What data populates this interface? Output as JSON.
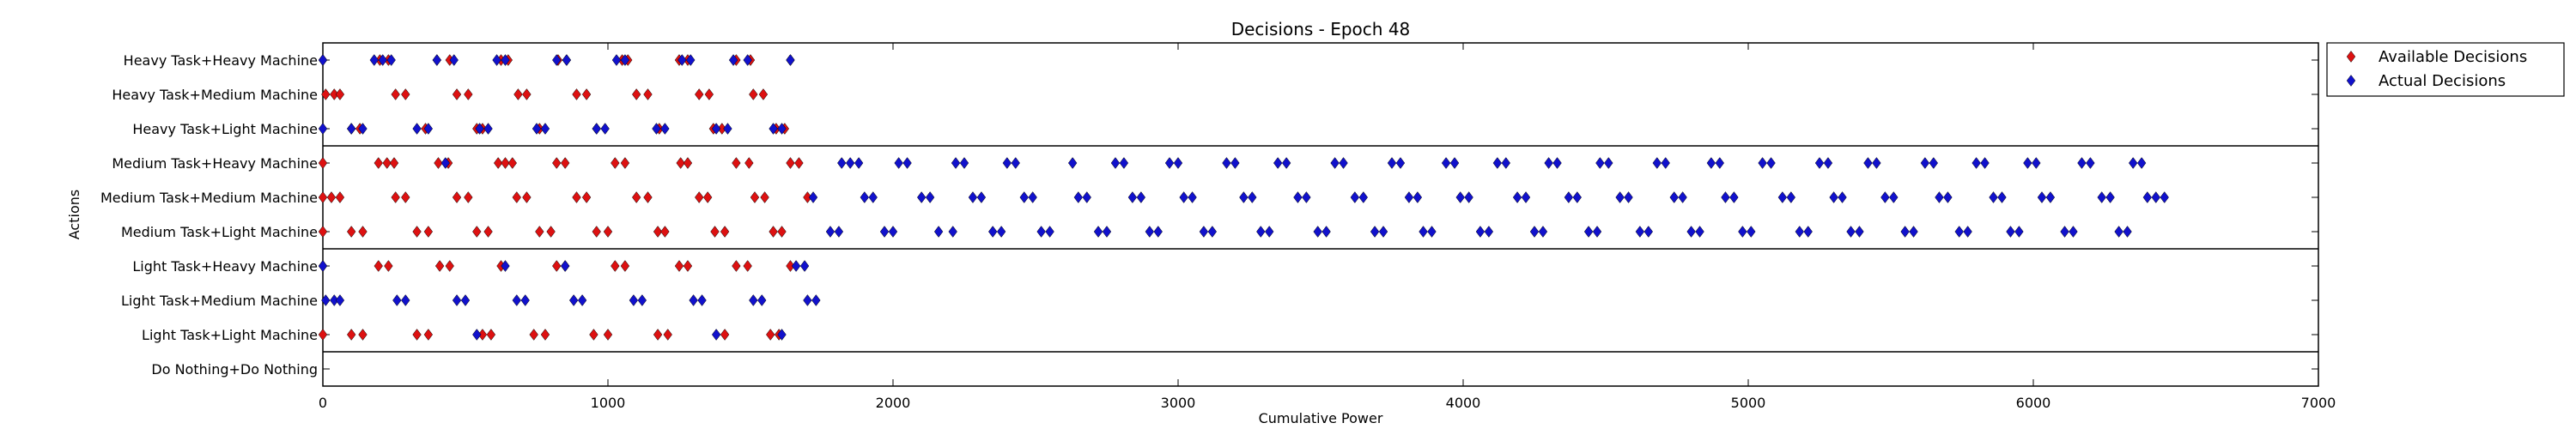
{
  "chart_data": {
    "type": "scatter",
    "title": "Decisions - Epoch 48",
    "xlabel": "Cumulative Power",
    "ylabel": "Actions",
    "xlim": [
      0,
      7000
    ],
    "xticks": [
      "0",
      "1000",
      "2000",
      "3000",
      "4000",
      "5000",
      "6000",
      "7000"
    ],
    "categories": [
      "Heavy Task+Heavy Machine",
      "Heavy Task+Medium Machine",
      "Heavy Task+Light Machine",
      "Medium Task+Heavy Machine",
      "Medium Task+Medium Machine",
      "Medium Task+Light Machine",
      "Light Task+Heavy Machine",
      "Light Task+Medium Machine",
      "Light Task+Light Machine",
      "Do Nothing+Do Nothing"
    ],
    "group_separators_after": [
      2,
      5,
      8
    ],
    "legend_position": "outside-right-top",
    "series": [
      {
        "name": "Available Decisions",
        "color": "#dd1111",
        "points": [
          {
            "cat": 0,
            "x": [
              0,
              200,
              230,
              400,
              445,
              625,
              650,
              825,
              855,
              1050,
              1070,
              1250,
              1280,
              1450,
              1500,
              1640
            ]
          },
          {
            "cat": 1,
            "x": [
              10,
              40,
              60,
              255,
              290,
              470,
              510,
              685,
              715,
              890,
              925,
              1100,
              1140,
              1320,
              1355,
              1510,
              1545
            ]
          },
          {
            "cat": 2,
            "x": [
              100,
              130,
              360,
              540,
              560,
              760,
              960,
              1180,
              1370,
              1400,
              1590,
              1620
            ]
          },
          {
            "cat": 3,
            "x": [
              0,
              195,
              225,
              250,
              405,
              440,
              615,
              640,
              665,
              820,
              850,
              1025,
              1060,
              1255,
              1280,
              1450,
              1495,
              1640,
              1670
            ]
          },
          {
            "cat": 4,
            "x": [
              0,
              30,
              60,
              255,
              290,
              470,
              510,
              680,
              715,
              890,
              925,
              1100,
              1140,
              1320,
              1350,
              1515,
              1550,
              1700
            ]
          },
          {
            "cat": 5,
            "x": [
              0,
              100,
              140,
              330,
              370,
              540,
              580,
              760,
              800,
              960,
              1000,
              1175,
              1200,
              1375,
              1410,
              1580,
              1610
            ]
          },
          {
            "cat": 6,
            "x": [
              0,
              195,
              230,
              410,
              445,
              625,
              820,
              850,
              1025,
              1060,
              1250,
              1280,
              1450,
              1490,
              1640
            ]
          },
          {
            "cat": 8,
            "x": [
              0,
              100,
              140,
              330,
              370,
              560,
              590,
              740,
              780,
              950,
              1000,
              1175,
              1210,
              1410,
              1570,
              1600
            ]
          }
        ]
      },
      {
        "name": "Actual Decisions",
        "color": "#1111cc",
        "points": [
          {
            "cat": 0,
            "x": [
              0,
              180,
              210,
              240,
              400,
              460,
              610,
              640,
              820,
              855,
              1030,
              1060,
              1260,
              1290,
              1440,
              1490,
              1640
            ]
          },
          {
            "cat": 2,
            "x": [
              0,
              100,
              140,
              330,
              370,
              550,
              580,
              750,
              780,
              960,
              990,
              1170,
              1200,
              1380,
              1420,
              1580,
              1610
            ]
          },
          {
            "cat": 3,
            "x": [
              430,
              1820,
              1850,
              1880,
              2020,
              2050,
              2220,
              2250,
              2400,
              2430,
              2630,
              2780,
              2810,
              2970,
              3000,
              3170,
              3200,
              3350,
              3380,
              3550,
              3580,
              3750,
              3780,
              3940,
              3970,
              4120,
              4150,
              4300,
              4330,
              4480,
              4510,
              4680,
              4710,
              4870,
              4900,
              5050,
              5080,
              5250,
              5280,
              5420,
              5450,
              5620,
              5650,
              5800,
              5830,
              5980,
              6010,
              6170,
              6200,
              6350,
              6380
            ]
          },
          {
            "cat": 4,
            "x": [
              1720,
              1900,
              1930,
              2100,
              2130,
              2280,
              2310,
              2460,
              2490,
              2650,
              2680,
              2840,
              2870,
              3020,
              3050,
              3230,
              3260,
              3420,
              3450,
              3620,
              3650,
              3810,
              3840,
              3990,
              4020,
              4190,
              4220,
              4370,
              4400,
              4550,
              4580,
              4740,
              4770,
              4920,
              4950,
              5120,
              5150,
              5300,
              5330,
              5480,
              5510,
              5670,
              5700,
              5860,
              5890,
              6030,
              6060,
              6240,
              6270,
              6400,
              6430,
              6460
            ]
          },
          {
            "cat": 5,
            "x": [
              1780,
              1810,
              1970,
              2000,
              2160,
              2210,
              2350,
              2380,
              2520,
              2550,
              2720,
              2750,
              2900,
              2930,
              3090,
              3120,
              3290,
              3320,
              3490,
              3520,
              3690,
              3720,
              3860,
              3890,
              4060,
              4090,
              4250,
              4280,
              4440,
              4470,
              4620,
              4650,
              4800,
              4830,
              4980,
              5010,
              5180,
              5210,
              5360,
              5390,
              5550,
              5580,
              5740,
              5770,
              5920,
              5950,
              6110,
              6140,
              6300,
              6330
            ]
          },
          {
            "cat": 6,
            "x": [
              0,
              640,
              850,
              1660,
              1690
            ]
          },
          {
            "cat": 7,
            "x": [
              10,
              40,
              60,
              260,
              290,
              470,
              500,
              680,
              710,
              880,
              910,
              1090,
              1120,
              1300,
              1330,
              1510,
              1540,
              1700,
              1730
            ]
          },
          {
            "cat": 8,
            "x": [
              540,
              1380,
              1610
            ]
          }
        ]
      }
    ]
  }
}
